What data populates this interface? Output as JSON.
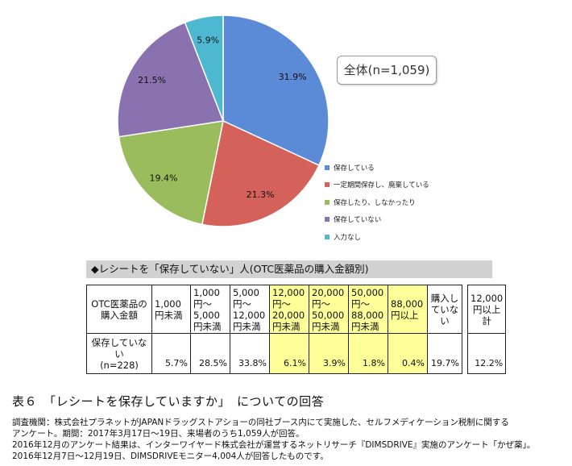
{
  "chart_data": {
    "type": "pie",
    "slices": [
      {
        "label": "保存している",
        "value": 31.9,
        "value_label": "31.9%",
        "color": "#5b8bd6"
      },
      {
        "label": "一定期間保存し、廃棄している",
        "value": 21.3,
        "value_label": "21.3%",
        "color": "#d4625a"
      },
      {
        "label": "保存したり、しなかったり",
        "value": 19.4,
        "value_label": "19.4%",
        "color": "#9bbc5c"
      },
      {
        "label": "保存していない",
        "value": 21.5,
        "value_label": "21.5%",
        "color": "#8a72b0"
      },
      {
        "label": "入力なし",
        "value": 5.9,
        "value_label": "5.9%",
        "color": "#4fb8d1"
      }
    ],
    "legend_position": "right"
  },
  "n_label": "全体(n=1,059)",
  "table": {
    "caption": "◆レシートを「保存していない」人(OTC医薬品の購入金額別)",
    "row_header": "OTC医薬品の購入金額",
    "columns": [
      "1,000円未満",
      "1,000円～5,000円未満",
      "5,000円～12,000円未満",
      "12,000円～20,000円未満",
      "20,000円～50,000円未満",
      "50,000円～88,000円未満",
      "88,000円以上",
      "購入していない",
      "12,000円以上計"
    ],
    "row_label": "保存していない",
    "row_n": "(n=228)",
    "values": [
      "5.7%",
      "28.5%",
      "33.8%",
      "6.1%",
      "3.9%",
      "1.8%",
      "0.4%",
      "19.7%",
      "12.2%"
    ]
  },
  "title": "表６　「レシートを保存していますか」　についての回答",
  "notes": [
    "調査機関：株式会社プラネットがJAPANドラッグストアショーの同社ブース内にて実施した、セルフメディケーション税制に関する",
    "アンケート。期間：2017年3月17日～19日、来場者のうち1,059人が回答。",
    "2016年12月のアンケート結果は、インターワイヤード株式会社が運営するネットリサーチ『DIMSDRIVE』実施のアンケート「かぜ薬」。",
    "2016年12月7日～12月19日、DIMSDRIVEモニター4,004人が回答したものです。"
  ]
}
